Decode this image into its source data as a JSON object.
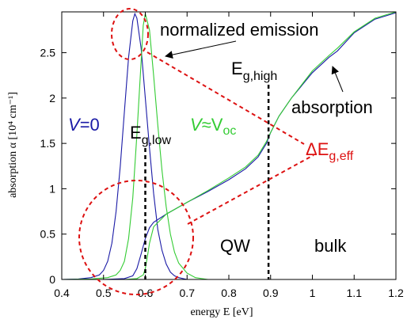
{
  "chart_data": {
    "type": "line",
    "xlabel": "energy E [eV]",
    "ylabel": "absorption α [10⁴ cm⁻¹]",
    "xlim": [
      0.4,
      1.2
    ],
    "ylim": [
      0,
      2.95
    ],
    "xticks": [
      "0.4",
      "0.5",
      "0.6",
      "0.7",
      "0.8",
      "0.9",
      "1",
      "1.1",
      "1.2"
    ],
    "yticks": [
      "0",
      "0.5",
      "1",
      "1.5",
      "2",
      "2.5"
    ],
    "grid": false,
    "legend": "none",
    "colors": {
      "blue": "#1a1aa6",
      "green": "#33cc33",
      "red": "#dd1111"
    },
    "series": [
      {
        "label": "V=0",
        "role": "emission",
        "x": [
          0.4,
          0.44,
          0.47,
          0.49,
          0.5,
          0.51,
          0.52,
          0.53,
          0.54,
          0.55,
          0.56,
          0.57,
          0.575,
          0.58,
          0.59,
          0.6,
          0.61,
          0.62,
          0.63,
          0.64,
          0.65,
          0.66,
          0.67,
          0.68,
          0.7
        ],
        "y": [
          0.0,
          0.005,
          0.02,
          0.05,
          0.1,
          0.2,
          0.4,
          0.75,
          1.25,
          1.85,
          2.45,
          2.85,
          2.93,
          2.88,
          2.55,
          2.0,
          1.45,
          0.95,
          0.55,
          0.32,
          0.17,
          0.08,
          0.04,
          0.02,
          0.0
        ]
      },
      {
        "label": "V≈Voc",
        "role": "emission",
        "x": [
          0.4,
          0.47,
          0.51,
          0.53,
          0.54,
          0.55,
          0.56,
          0.57,
          0.58,
          0.59,
          0.595,
          0.6,
          0.61,
          0.62,
          0.63,
          0.64,
          0.65,
          0.66,
          0.67,
          0.68,
          0.7,
          0.72,
          0.75
        ],
        "y": [
          0.0,
          0.005,
          0.02,
          0.05,
          0.1,
          0.2,
          0.45,
          0.9,
          1.6,
          2.4,
          2.8,
          2.93,
          2.75,
          2.25,
          1.7,
          1.2,
          0.8,
          0.5,
          0.3,
          0.18,
          0.07,
          0.02,
          0.0
        ]
      },
      {
        "label": "V=0",
        "role": "absorption",
        "x": [
          0.4,
          0.5,
          0.55,
          0.57,
          0.58,
          0.59,
          0.6,
          0.61,
          0.62,
          0.65,
          0.7,
          0.75,
          0.8,
          0.84,
          0.87,
          0.89,
          0.9,
          0.92,
          0.95,
          1.0,
          1.04,
          1.06,
          1.1,
          1.15,
          1.2
        ],
        "y": [
          0.0,
          0.0,
          0.01,
          0.04,
          0.12,
          0.28,
          0.45,
          0.57,
          0.63,
          0.72,
          0.85,
          0.97,
          1.1,
          1.22,
          1.35,
          1.5,
          1.62,
          1.8,
          2.0,
          2.28,
          2.45,
          2.52,
          2.72,
          2.87,
          2.94
        ]
      },
      {
        "label": "V≈Voc",
        "role": "absorption",
        "x": [
          0.4,
          0.55,
          0.58,
          0.595,
          0.6,
          0.605,
          0.61,
          0.62,
          0.65,
          0.7,
          0.75,
          0.8,
          0.84,
          0.87,
          0.89,
          0.9,
          0.92,
          0.95,
          1.0,
          1.04,
          1.06,
          1.1,
          1.15,
          1.2
        ],
        "y": [
          0.0,
          0.0,
          0.01,
          0.05,
          0.12,
          0.25,
          0.4,
          0.58,
          0.72,
          0.85,
          0.98,
          1.12,
          1.24,
          1.37,
          1.52,
          1.62,
          1.8,
          2.0,
          2.3,
          2.47,
          2.55,
          2.73,
          2.88,
          2.95
        ]
      }
    ],
    "vlines": [
      {
        "label_main": "E",
        "label_sub": "g,low",
        "x": 0.6
      },
      {
        "label_main": "E",
        "label_sub": "g,high",
        "x": 0.895
      }
    ],
    "annotations": {
      "normalized_emission": "normalized emission",
      "absorption": "absorption",
      "v0_var": "V",
      "v0_rest": "=0",
      "voc_var": "V",
      "voc_rest": "≈V",
      "voc_sub": "oc",
      "delta_main": "ΔE",
      "delta_sub": "g,eff",
      "qw": "QW",
      "bulk": "bulk"
    }
  }
}
